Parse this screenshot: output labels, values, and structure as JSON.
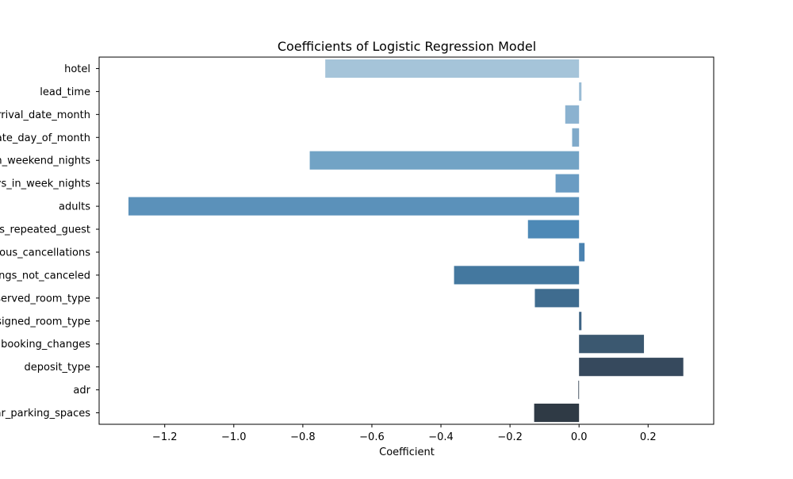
{
  "chart_data": {
    "type": "bar",
    "orientation": "horizontal",
    "title": "Coefficients of Logistic Regression Model",
    "xlabel": "Coefficient",
    "ylabel": "",
    "xlim": [
      -1.39,
      0.39
    ],
    "xticks": [
      -1.2,
      -1.0,
      -0.8,
      -0.6,
      -0.4,
      -0.2,
      0.0,
      0.2
    ],
    "xtick_labels": [
      "−1.2",
      "−1.0",
      "−0.8",
      "−0.6",
      "−0.4",
      "−0.2",
      "0.0",
      "0.2"
    ],
    "grid": false,
    "categories": [
      "hotel",
      "lead_time",
      "arrival_date_month",
      "arrival_date_day_of_month",
      "stays_in_weekend_nights",
      "stays_in_week_nights",
      "adults",
      "is_repeated_guest",
      "previous_cancellations",
      "previous_bookings_not_canceled",
      "reserved_room_type",
      "assigned_room_type",
      "booking_changes",
      "deposit_type",
      "adr",
      "required_car_parking_spaces"
    ],
    "values": [
      -0.735,
      0.007,
      -0.04,
      -0.02,
      -0.78,
      -0.068,
      -1.305,
      -0.148,
      0.016,
      -0.362,
      -0.128,
      0.007,
      0.188,
      0.302,
      -0.002,
      -0.13
    ],
    "colors": [
      "#a5c4d9",
      "#9abcd5",
      "#8bb2d0",
      "#80aaca",
      "#72a3c5",
      "#6a9cc3",
      "#5b91ba",
      "#4d89b6",
      "#4a82b0",
      "#44789f",
      "#3f6c8f",
      "#3d6384",
      "#3b5870",
      "#36495d",
      "#344253",
      "#2f3a45"
    ]
  }
}
